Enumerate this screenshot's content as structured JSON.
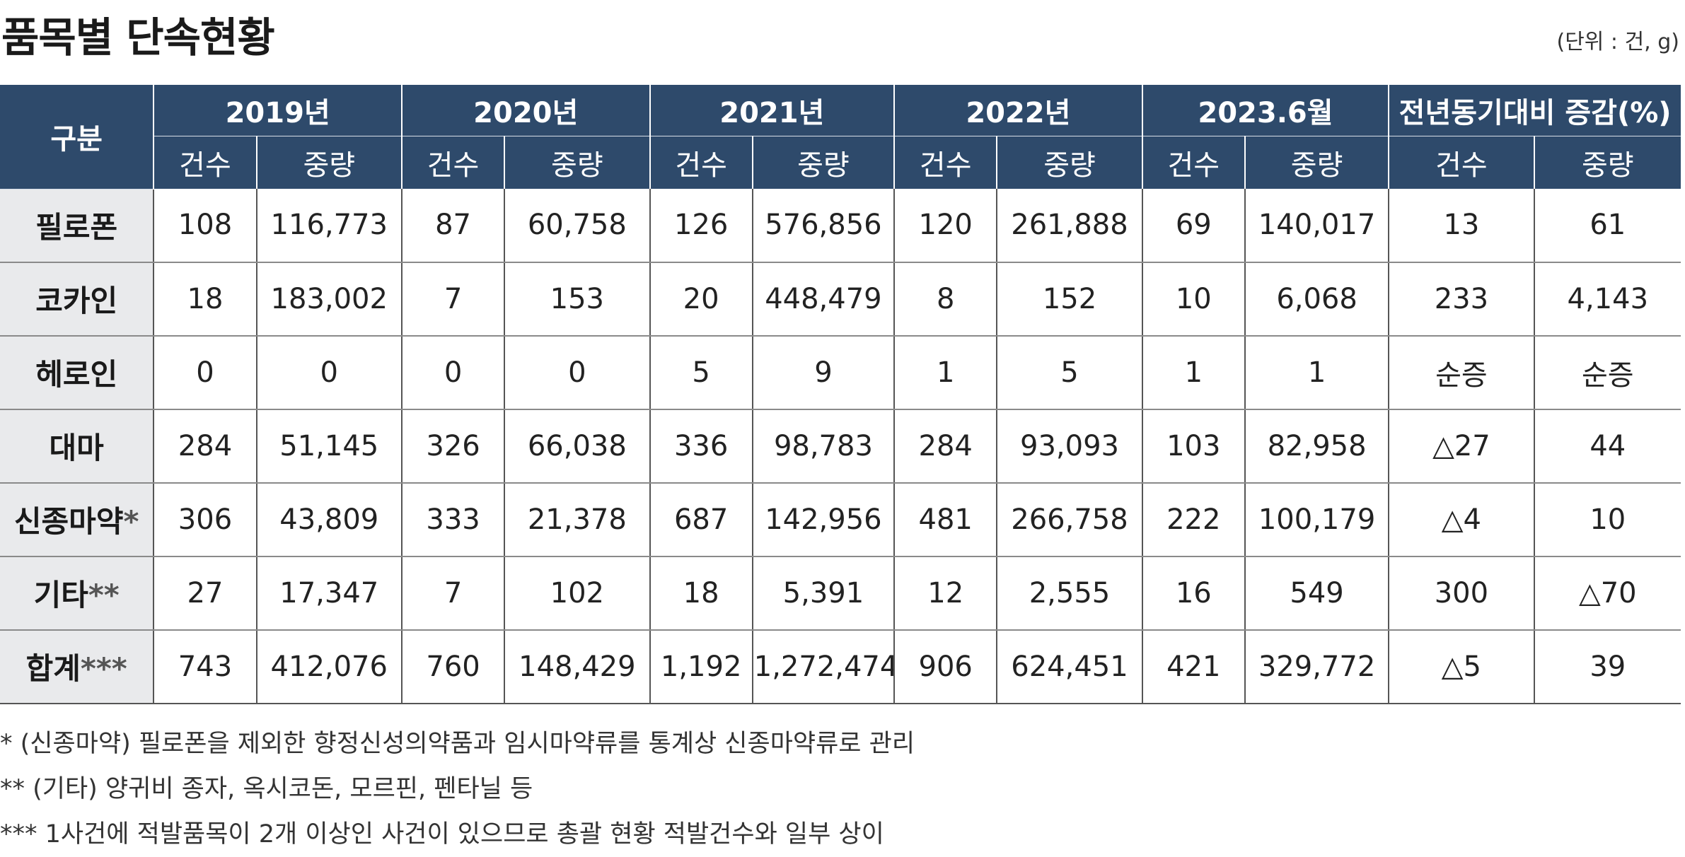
{
  "title": "품목별 단속현황",
  "unit": "(단위 : 건, g)",
  "table": {
    "corner": "구분",
    "groups": [
      "2019년",
      "2020년",
      "2021년",
      "2022년",
      "2023.6월",
      "전년동기대비 증감(%)"
    ],
    "subcols": [
      "건수",
      "중량",
      "건수",
      "중량",
      "건수",
      "중량",
      "건수",
      "중량",
      "건수",
      "중량",
      "건수",
      "중량"
    ],
    "rows": [
      {
        "label": "필로폰",
        "mark": "",
        "cells": [
          "108",
          "116,773",
          "87",
          "60,758",
          "126",
          "576,856",
          "120",
          "261,888",
          "69",
          "140,017",
          "13",
          "61"
        ]
      },
      {
        "label": "코카인",
        "mark": "",
        "cells": [
          "18",
          "183,002",
          "7",
          "153",
          "20",
          "448,479",
          "8",
          "152",
          "10",
          "6,068",
          "233",
          "4,143"
        ]
      },
      {
        "label": "헤로인",
        "mark": "",
        "cells": [
          "0",
          "0",
          "0",
          "0",
          "5",
          "9",
          "1",
          "5",
          "1",
          "1",
          "순증",
          "순증"
        ]
      },
      {
        "label": "대마",
        "mark": "",
        "cells": [
          "284",
          "51,145",
          "326",
          "66,038",
          "336",
          "98,783",
          "284",
          "93,093",
          "103",
          "82,958",
          "△27",
          "44"
        ]
      },
      {
        "label": "신종마약",
        "mark": "*",
        "cells": [
          "306",
          "43,809",
          "333",
          "21,378",
          "687",
          "142,956",
          "481",
          "266,758",
          "222",
          "100,179",
          "△4",
          "10"
        ]
      },
      {
        "label": "기타",
        "mark": "**",
        "cells": [
          "27",
          "17,347",
          "7",
          "102",
          "18",
          "5,391",
          "12",
          "2,555",
          "16",
          "549",
          "300",
          "△70"
        ]
      },
      {
        "label": "합계",
        "mark": "***",
        "cells": [
          "743",
          "412,076",
          "760",
          "148,429",
          "1,192",
          "1,272,474",
          "906",
          "624,451",
          "421",
          "329,772",
          "△5",
          "39"
        ]
      }
    ]
  },
  "notes": [
    "* (신종마약) 필로폰을 제외한 향정신성의약품과 임시마약류를 통계상 신종마약류로 관리",
    "** (기타) 양귀비 종자, 옥시코돈, 모르핀, 펜타닐 등",
    "*** 1사건에 적발품목이 2개 이상인 사건이 있으므로 총괄 현황 적발건수와 일부 상이"
  ]
}
